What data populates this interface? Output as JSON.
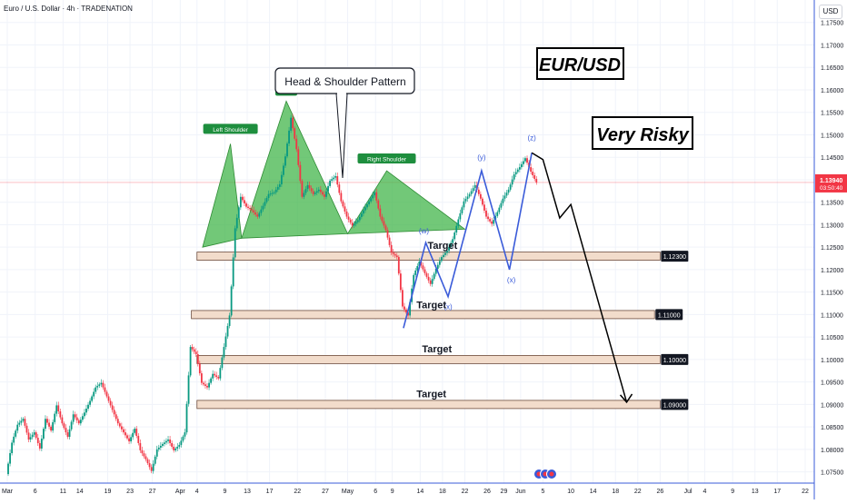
{
  "header": {
    "title": "Euro / U.S. Dollar · 4h · TRADENATION",
    "currency_button": "USD"
  },
  "colors": {
    "up": "#089981",
    "down": "#f23645",
    "pattern_fill": "#43b54b",
    "wave": "#3a5bd9",
    "zone_fill": "#f2dccb",
    "zone_border": "#6d4c3d"
  },
  "chart_data": {
    "type": "candlestick",
    "title": "",
    "ylabel": "USD",
    "ylim": [
      1.0725,
      1.18
    ],
    "y_ticks": [
      "1.17500",
      "1.17000",
      "1.16500",
      "1.16000",
      "1.15500",
      "1.15000",
      "1.14500",
      "1.14000",
      "1.13500",
      "1.13000",
      "1.12500",
      "1.12000",
      "1.11500",
      "1.11000",
      "1.10500",
      "1.10000",
      "1.09500",
      "1.09000",
      "1.08500",
      "1.08000",
      "1.07500"
    ],
    "x_ticks": [
      "Mar",
      "6",
      "11",
      "14",
      "19",
      "23",
      "27",
      "Apr",
      "4",
      "9",
      "13",
      "17",
      "22",
      "27",
      "May",
      "6",
      "9",
      "14",
      "18",
      "22",
      "26",
      "29",
      "Jun",
      "5",
      "10",
      "14",
      "18",
      "22",
      "26",
      "Jul",
      "4",
      "9",
      "13",
      "17",
      "22"
    ],
    "x_tick_values": [
      "2025-03-01",
      "2025-03-06",
      "2025-03-11",
      "2025-03-14",
      "2025-03-19",
      "2025-03-23",
      "2025-03-27",
      "2025-04-01",
      "2025-04-04",
      "2025-04-09",
      "2025-04-13",
      "2025-04-17",
      "2025-04-22",
      "2025-04-27",
      "2025-05-01",
      "2025-05-06",
      "2025-05-09",
      "2025-05-14",
      "2025-05-18",
      "2025-05-22",
      "2025-05-26",
      "2025-05-29",
      "2025-06-01",
      "2025-06-05",
      "2025-06-10",
      "2025-06-14",
      "2025-06-18",
      "2025-06-22",
      "2025-06-26",
      "2025-07-01",
      "2025-07-04",
      "2025-07-09",
      "2025-07-13",
      "2025-07-17",
      "2025-07-22"
    ],
    "current_price": {
      "label": "1.13940",
      "sublabel": "03:50:40",
      "value": 1.1394
    },
    "price_path": [
      {
        "x": "2025-03-01",
        "y": 1.0745
      },
      {
        "x": "2025-03-02",
        "y": 1.0815
      },
      {
        "x": "2025-03-03",
        "y": 1.0855
      },
      {
        "x": "2025-03-04",
        "y": 1.0868
      },
      {
        "x": "2025-03-05",
        "y": 1.0822
      },
      {
        "x": "2025-03-06",
        "y": 1.0838
      },
      {
        "x": "2025-03-07",
        "y": 1.0802
      },
      {
        "x": "2025-03-08",
        "y": 1.0868
      },
      {
        "x": "2025-03-09",
        "y": 1.0842
      },
      {
        "x": "2025-03-10",
        "y": 1.0898
      },
      {
        "x": "2025-03-11",
        "y": 1.0858
      },
      {
        "x": "2025-03-12",
        "y": 1.0828
      },
      {
        "x": "2025-03-13",
        "y": 1.0878
      },
      {
        "x": "2025-03-14",
        "y": 1.0858
      },
      {
        "x": "2025-03-15",
        "y": 1.0882
      },
      {
        "x": "2025-03-16",
        "y": 1.0908
      },
      {
        "x": "2025-03-17",
        "y": 1.0938
      },
      {
        "x": "2025-03-18",
        "y": 1.0948
      },
      {
        "x": "2025-03-19",
        "y": 1.0918
      },
      {
        "x": "2025-03-20",
        "y": 1.0888
      },
      {
        "x": "2025-03-21",
        "y": 1.0858
      },
      {
        "x": "2025-03-22",
        "y": 1.0838
      },
      {
        "x": "2025-03-23",
        "y": 1.0818
      },
      {
        "x": "2025-03-24",
        "y": 1.0846
      },
      {
        "x": "2025-03-25",
        "y": 1.0798
      },
      {
        "x": "2025-03-26",
        "y": 1.0778
      },
      {
        "x": "2025-03-27",
        "y": 1.0752
      },
      {
        "x": "2025-03-28",
        "y": 1.08
      },
      {
        "x": "2025-03-29",
        "y": 1.0812
      },
      {
        "x": "2025-03-30",
        "y": 1.0822
      },
      {
        "x": "2025-03-31",
        "y": 1.0798
      },
      {
        "x": "2025-04-01",
        "y": 1.081
      },
      {
        "x": "2025-04-02",
        "y": 1.0838
      },
      {
        "x": "2025-04-03",
        "y": 1.1028
      },
      {
        "x": "2025-04-04",
        "y": 1.1012
      },
      {
        "x": "2025-04-05",
        "y": 1.0948
      },
      {
        "x": "2025-04-06",
        "y": 1.0938
      },
      {
        "x": "2025-04-07",
        "y": 1.0968
      },
      {
        "x": "2025-04-08",
        "y": 1.0958
      },
      {
        "x": "2025-04-09",
        "y": 1.1028
      },
      {
        "x": "2025-04-10",
        "y": 1.1098
      },
      {
        "x": "2025-04-11",
        "y": 1.1292
      },
      {
        "x": "2025-04-12",
        "y": 1.1362
      },
      {
        "x": "2025-04-13",
        "y": 1.134
      },
      {
        "x": "2025-04-14",
        "y": 1.1332
      },
      {
        "x": "2025-04-15",
        "y": 1.1318
      },
      {
        "x": "2025-04-16",
        "y": 1.1342
      },
      {
        "x": "2025-04-17",
        "y": 1.1368
      },
      {
        "x": "2025-04-18",
        "y": 1.1372
      },
      {
        "x": "2025-04-19",
        "y": 1.139
      },
      {
        "x": "2025-04-20",
        "y": 1.1452
      },
      {
        "x": "2025-04-21",
        "y": 1.1538
      },
      {
        "x": "2025-04-22",
        "y": 1.1468
      },
      {
        "x": "2025-04-23",
        "y": 1.1362
      },
      {
        "x": "2025-04-24",
        "y": 1.1388
      },
      {
        "x": "2025-04-25",
        "y": 1.1368
      },
      {
        "x": "2025-04-26",
        "y": 1.1378
      },
      {
        "x": "2025-04-27",
        "y": 1.1362
      },
      {
        "x": "2025-04-28",
        "y": 1.1398
      },
      {
        "x": "2025-04-29",
        "y": 1.1408
      },
      {
        "x": "2025-04-30",
        "y": 1.1352
      },
      {
        "x": "2025-05-01",
        "y": 1.1318
      },
      {
        "x": "2025-05-02",
        "y": 1.1298
      },
      {
        "x": "2025-05-03",
        "y": 1.131
      },
      {
        "x": "2025-05-04",
        "y": 1.1332
      },
      {
        "x": "2025-05-05",
        "y": 1.1352
      },
      {
        "x": "2025-05-06",
        "y": 1.1372
      },
      {
        "x": "2025-05-07",
        "y": 1.1318
      },
      {
        "x": "2025-05-08",
        "y": 1.1288
      },
      {
        "x": "2025-05-09",
        "y": 1.1238
      },
      {
        "x": "2025-05-10",
        "y": 1.1228
      },
      {
        "x": "2025-05-11",
        "y": 1.1118
      },
      {
        "x": "2025-05-12",
        "y": 1.1098
      },
      {
        "x": "2025-05-13",
        "y": 1.1188
      },
      {
        "x": "2025-05-14",
        "y": 1.1218
      },
      {
        "x": "2025-05-15",
        "y": 1.1192
      },
      {
        "x": "2025-05-16",
        "y": 1.1168
      },
      {
        "x": "2025-05-17",
        "y": 1.1202
      },
      {
        "x": "2025-05-18",
        "y": 1.1228
      },
      {
        "x": "2025-05-19",
        "y": 1.1242
      },
      {
        "x": "2025-05-20",
        "y": 1.1268
      },
      {
        "x": "2025-05-21",
        "y": 1.1312
      },
      {
        "x": "2025-05-22",
        "y": 1.1352
      },
      {
        "x": "2025-05-23",
        "y": 1.1368
      },
      {
        "x": "2025-05-24",
        "y": 1.1388
      },
      {
        "x": "2025-05-25",
        "y": 1.1358
      },
      {
        "x": "2025-05-26",
        "y": 1.1318
      },
      {
        "x": "2025-05-27",
        "y": 1.1302
      },
      {
        "x": "2025-05-28",
        "y": 1.1328
      },
      {
        "x": "2025-05-29",
        "y": 1.1358
      },
      {
        "x": "2025-05-30",
        "y": 1.1378
      },
      {
        "x": "2025-05-31",
        "y": 1.1412
      },
      {
        "x": "2025-06-01",
        "y": 1.1428
      },
      {
        "x": "2025-06-02",
        "y": 1.1448
      },
      {
        "x": "2025-06-03",
        "y": 1.1418
      },
      {
        "x": "2025-06-04",
        "y": 1.1394
      }
    ],
    "zones": [
      {
        "label": "Target",
        "value": 1.123,
        "price_label": "1.12300",
        "date_start": "2025-04-04",
        "date_end": "2025-06-26"
      },
      {
        "label": "Target",
        "value": 1.11,
        "price_label": "1.11000",
        "date_start": "2025-04-03",
        "date_end": "2025-06-25"
      },
      {
        "label": "Target",
        "value": 1.1,
        "price_label": "1.10000",
        "date_start": "2025-04-04",
        "date_end": "2025-06-26"
      },
      {
        "label": "Target",
        "value": 1.09,
        "price_label": "1.09000",
        "date_start": "2025-04-04",
        "date_end": "2025-06-26"
      }
    ],
    "head_shoulders": {
      "callout": "Head & Shoulder Pattern",
      "head_label": "Head",
      "left_shoulder_label": "Left Shoulder",
      "right_shoulder_label": "Right Shoulder",
      "left_shoulder": {
        "x": "2025-04-10",
        "y": 1.148
      },
      "head": {
        "x": "2025-04-20",
        "y": 1.1575
      },
      "right_shoulder": {
        "x": "2025-05-08",
        "y": 1.142
      },
      "base_left": {
        "x": "2025-04-05",
        "y": 1.125
      },
      "base_mid1": {
        "x": "2025-04-12",
        "y": 1.127
      },
      "base_mid2": {
        "x": "2025-05-01",
        "y": 1.128
      },
      "base_right": {
        "x": "2025-05-22",
        "y": 1.129
      }
    },
    "waves": [
      {
        "label": "(w)",
        "x": "2025-05-15",
        "y": 1.126
      },
      {
        "label": "(x)",
        "x": "2025-05-19",
        "y": 1.114
      },
      {
        "label": "(y)",
        "x": "2025-05-25",
        "y": 1.142
      },
      {
        "label": "(x)",
        "x": "2025-05-30",
        "y": 1.12
      },
      {
        "label": "(z)",
        "x": "2025-06-03",
        "y": 1.146
      }
    ],
    "wave_path": [
      {
        "x": "2025-05-11",
        "y": 1.107
      },
      {
        "x": "2025-05-15",
        "y": 1.126
      },
      {
        "x": "2025-05-19",
        "y": 1.114
      },
      {
        "x": "2025-05-25",
        "y": 1.142
      },
      {
        "x": "2025-05-30",
        "y": 1.12
      },
      {
        "x": "2025-06-03",
        "y": 1.146
      }
    ],
    "projection_path": [
      {
        "x": "2025-06-03",
        "y": 1.146
      },
      {
        "x": "2025-06-05",
        "y": 1.1445
      },
      {
        "x": "2025-06-08",
        "y": 1.1315
      },
      {
        "x": "2025-06-10",
        "y": 1.1345
      },
      {
        "x": "2025-06-20",
        "y": 1.0905
      }
    ],
    "annotations": [
      "EUR/USD",
      "Very Risky"
    ]
  }
}
